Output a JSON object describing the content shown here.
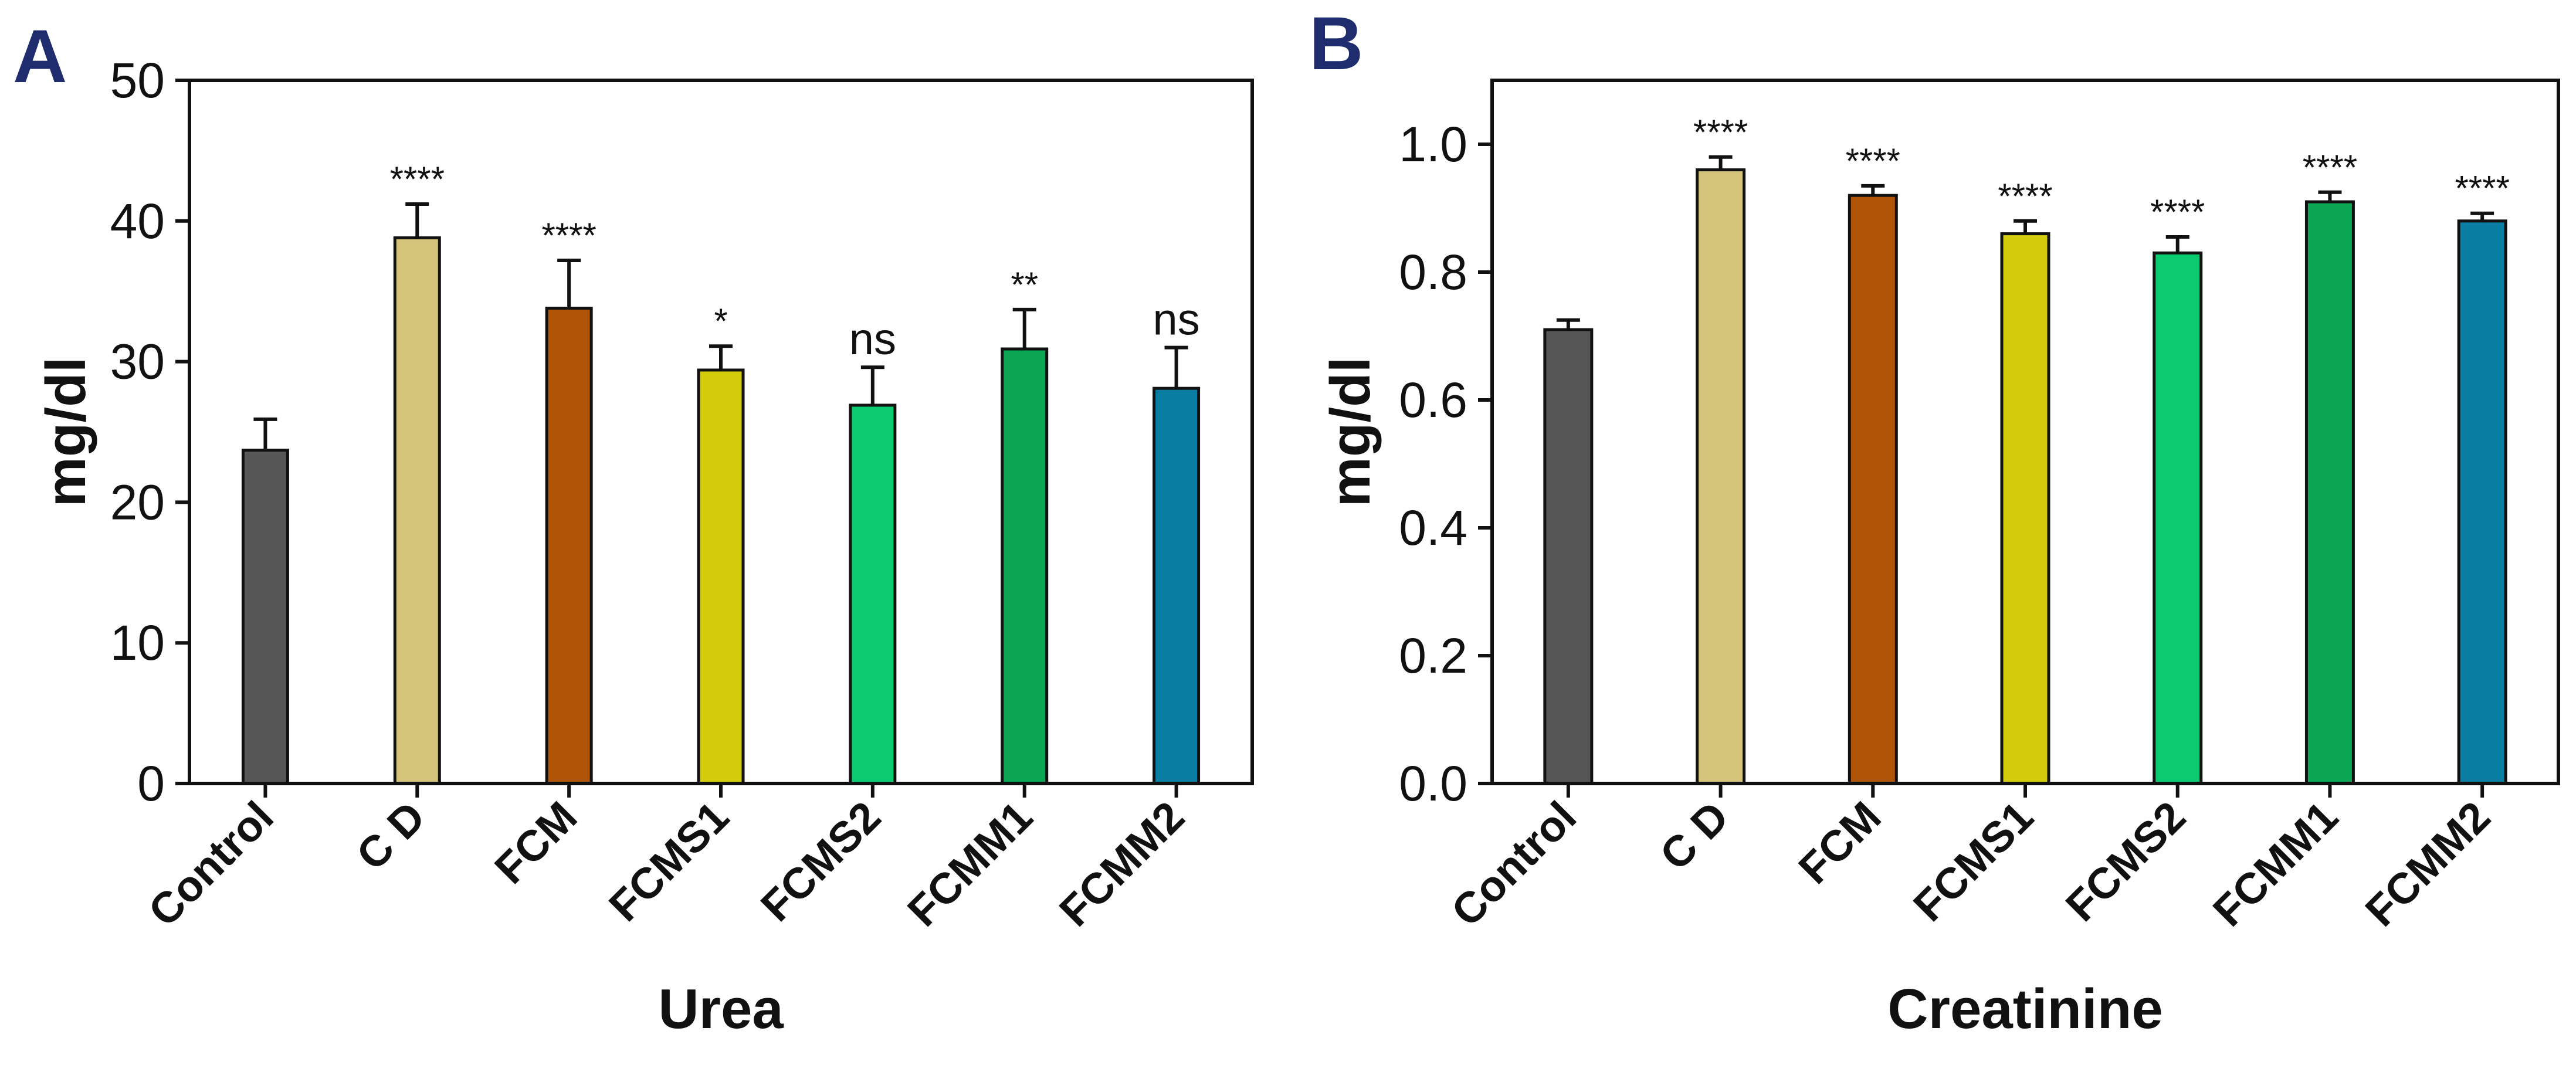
{
  "figure_labels": {
    "A": "A",
    "B": "B"
  },
  "label_color": "#1f2d6e",
  "chart_data": [
    {
      "type": "bar",
      "panel": "A",
      "categories": [
        "Control",
        "C D",
        "FCM",
        "FCMS1",
        "FCMS2",
        "FCMM1",
        "FCMM2"
      ],
      "values": [
        23.7,
        38.8,
        33.8,
        29.4,
        26.9,
        30.9,
        28.1
      ],
      "errors": [
        2.2,
        2.4,
        3.4,
        1.7,
        2.7,
        2.8,
        2.9
      ],
      "significance": [
        "",
        "****",
        "****",
        "*",
        "ns",
        "**",
        "ns"
      ],
      "colors": [
        "#565656",
        "#d4c47a",
        "#b05408",
        "#d3cc0a",
        "#0acb70",
        "#0aa654",
        "#0a7da3"
      ],
      "ylabel": "mg/dl",
      "xlabel": "Urea",
      "ylim": [
        0,
        50
      ],
      "yticks": [
        0,
        10,
        20,
        30,
        40,
        50
      ],
      "ytick_labels": [
        "0",
        "10",
        "20",
        "30",
        "40",
        "50"
      ]
    },
    {
      "type": "bar",
      "panel": "B",
      "categories": [
        "Control",
        "C D",
        "FCM",
        "FCMS1",
        "FCMS2",
        "FCMM1",
        "FCMM2"
      ],
      "values": [
        0.71,
        0.96,
        0.92,
        0.86,
        0.83,
        0.91,
        0.88
      ],
      "errors": [
        0.015,
        0.02,
        0.015,
        0.02,
        0.025,
        0.015,
        0.012
      ],
      "significance": [
        "",
        "****",
        "****",
        "****",
        "****",
        "****",
        "****"
      ],
      "colors": [
        "#565656",
        "#d4c47a",
        "#b05408",
        "#d3cc0a",
        "#0acb70",
        "#0aa654",
        "#0a7da3"
      ],
      "ylabel": "mg/dl",
      "xlabel": "Creatinine",
      "ylim": [
        0,
        1.1
      ],
      "yticks": [
        0,
        0.2,
        0.4,
        0.6,
        0.8,
        1.0
      ],
      "ytick_labels": [
        "0.0",
        "0.2",
        "0.4",
        "0.6",
        "0.8",
        "1.0"
      ]
    }
  ]
}
